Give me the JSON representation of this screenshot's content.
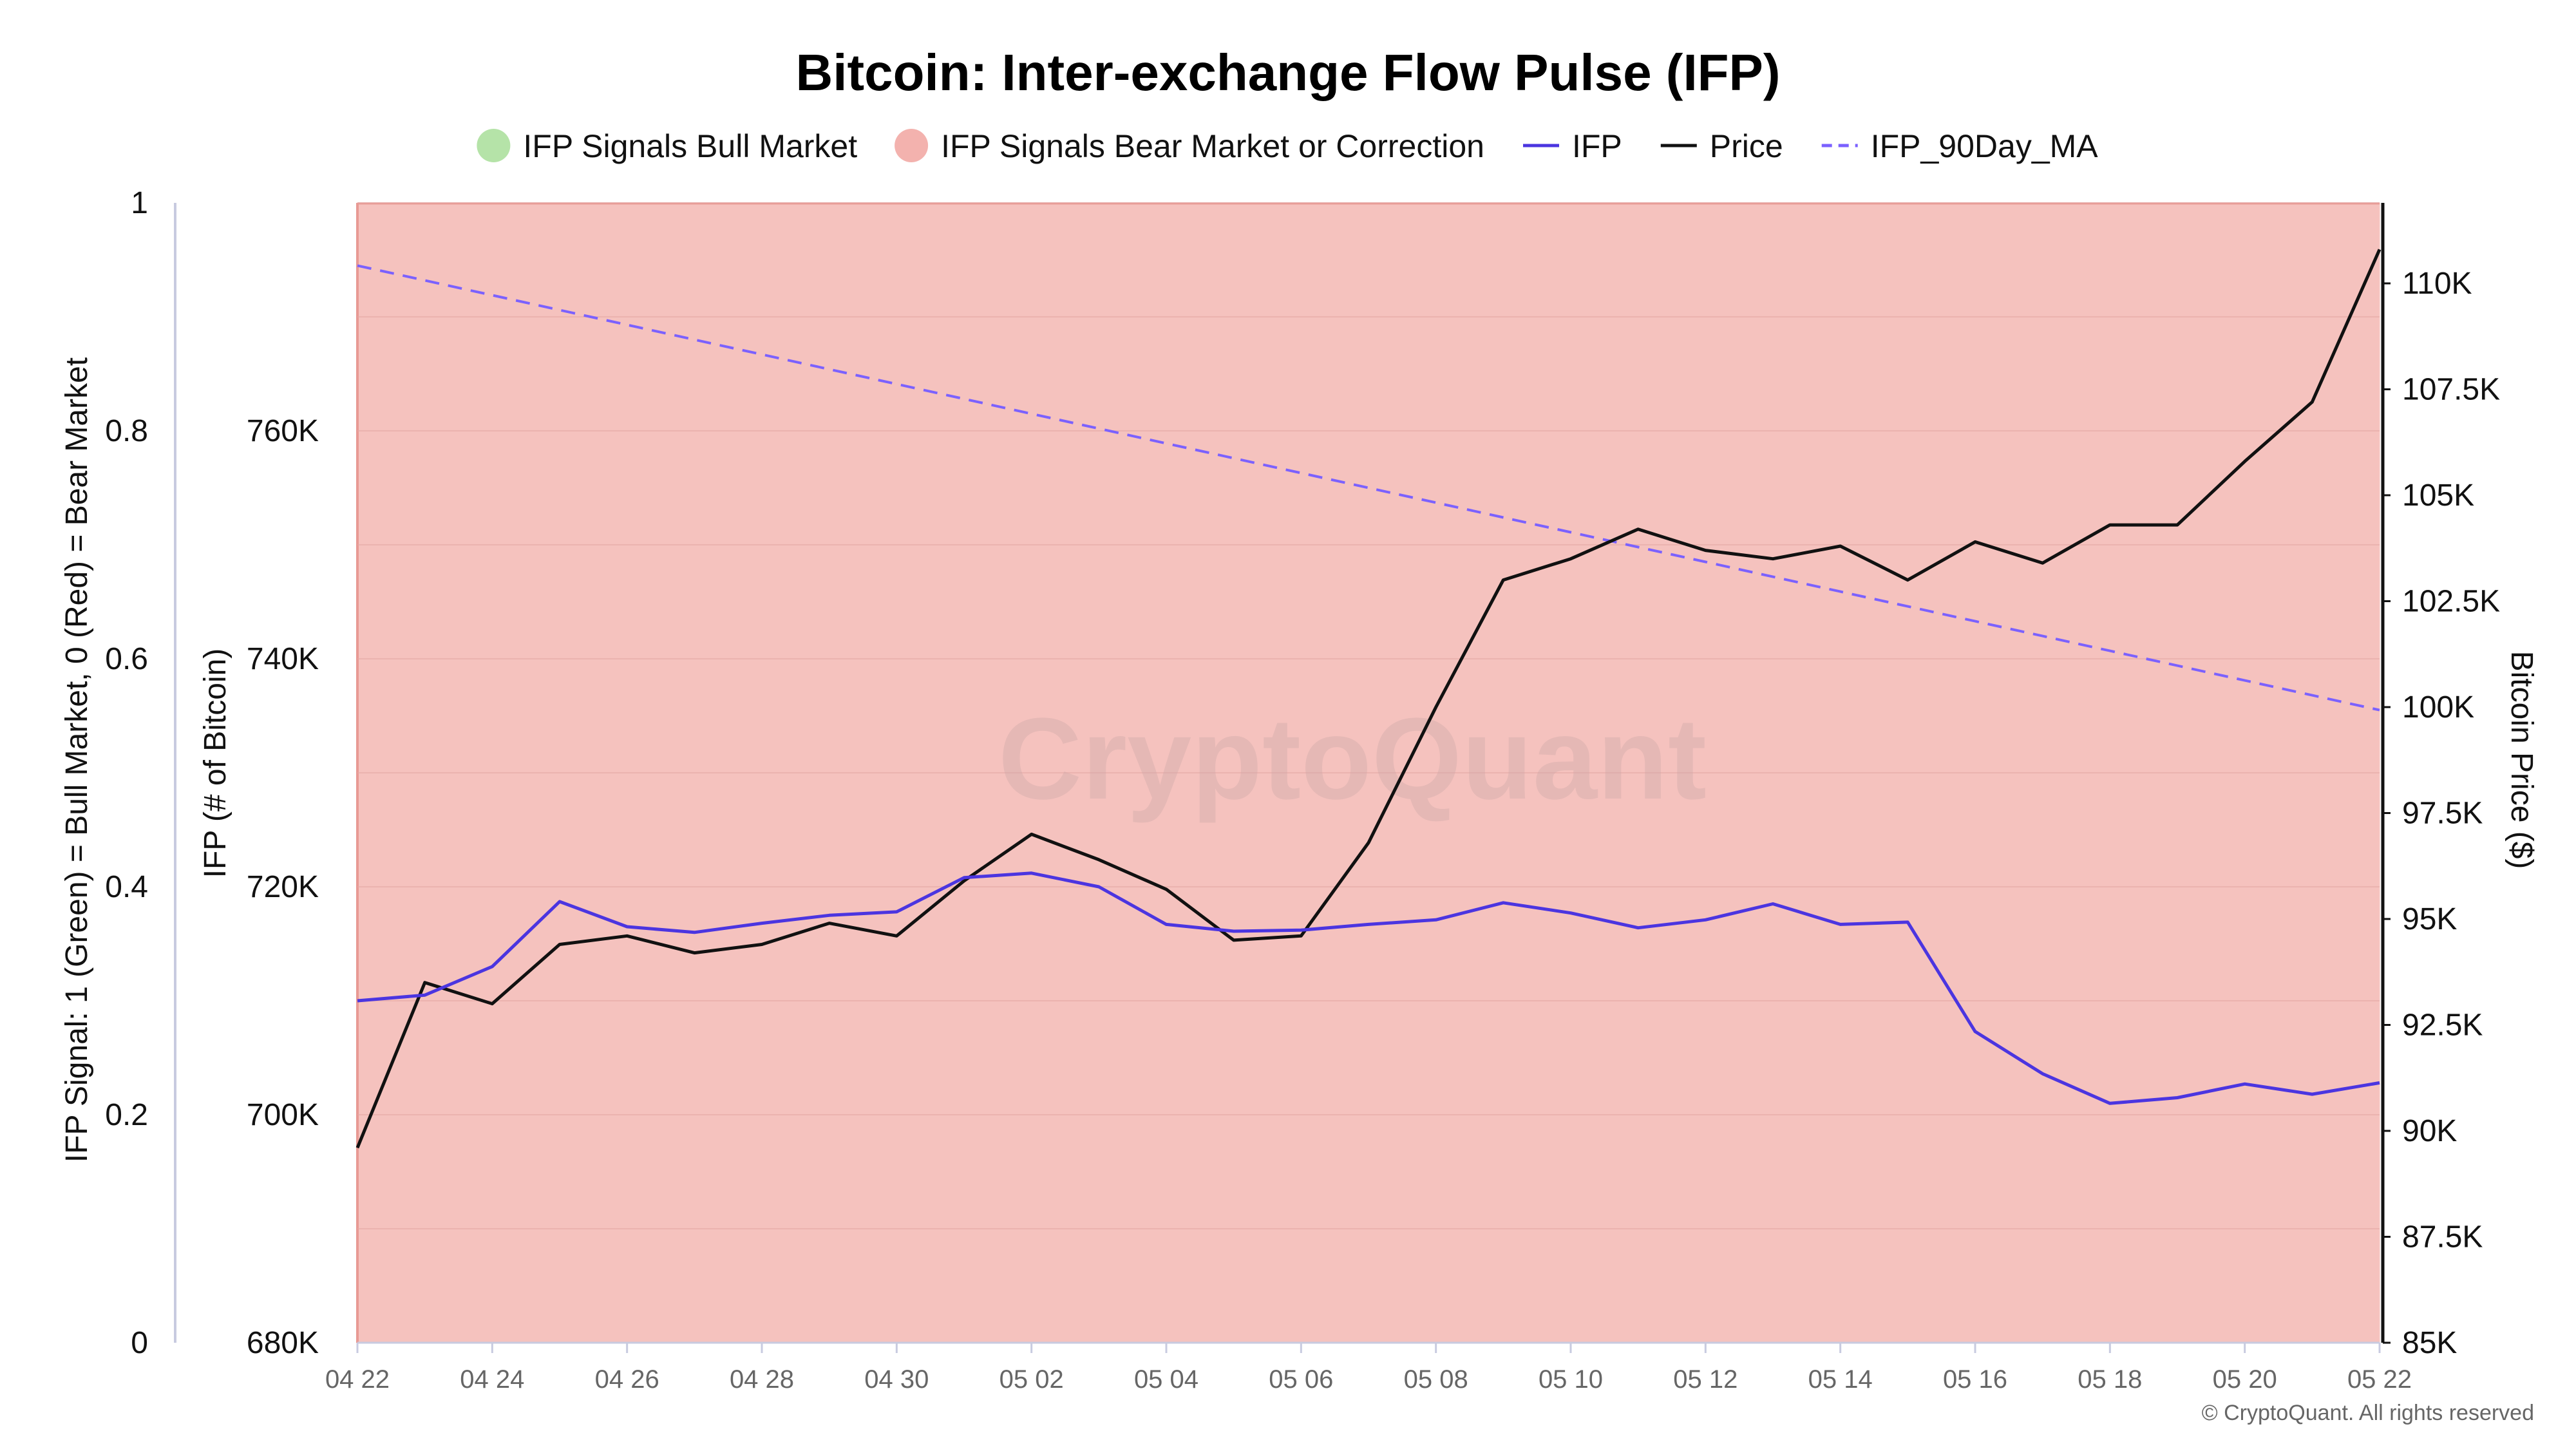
{
  "chart_data": {
    "type": "line",
    "title": "Bitcoin: Inter-exchange Flow Pulse (IFP)",
    "legend": [
      {
        "label": "IFP Signals Bull Market",
        "kind": "dot",
        "color": "#b5e3a8"
      },
      {
        "label": "IFP Signals Bear Market or Correction",
        "kind": "dot",
        "color": "#f3b2ae"
      },
      {
        "label": "IFP",
        "kind": "line",
        "color": "#4b35e0"
      },
      {
        "label": "Price",
        "kind": "line",
        "color": "#111111"
      },
      {
        "label": "IFP_90Day_MA",
        "kind": "dashed",
        "color": "#7b61ff"
      }
    ],
    "x": [
      "04 22",
      "04 23",
      "04 24",
      "04 25",
      "04 26",
      "04 27",
      "04 28",
      "04 29",
      "04 30",
      "05 01",
      "05 02",
      "05 03",
      "05 04",
      "05 05",
      "05 06",
      "05 07",
      "05 08",
      "05 09",
      "05 10",
      "05 11",
      "05 12",
      "05 13",
      "05 14",
      "05 15",
      "05 16",
      "05 17",
      "05 18",
      "05 19",
      "05 20",
      "05 21",
      "05 22"
    ],
    "x_tick_labels": [
      "04 22",
      "04 24",
      "04 26",
      "04 28",
      "04 30",
      "05 02",
      "05 04",
      "05 06",
      "05 08",
      "05 10",
      "05 12",
      "05 14",
      "05 16",
      "05 18",
      "05 20",
      "05 22"
    ],
    "signal": [
      0,
      0,
      0,
      0,
      0,
      0,
      0,
      0,
      0,
      0,
      0,
      0,
      0,
      0,
      0,
      0,
      0,
      0,
      0,
      0,
      0,
      0,
      0,
      0,
      0,
      0,
      0,
      0,
      0,
      0,
      0
    ],
    "series": [
      {
        "name": "IFP",
        "axis": "ifp",
        "color": "#4b35e0",
        "style": "solid",
        "values": [
          710000,
          710500,
          713000,
          718700,
          716500,
          716000,
          716800,
          717500,
          717800,
          720800,
          721200,
          720000,
          716700,
          716100,
          716200,
          716700,
          717100,
          718600,
          717700,
          716400,
          717100,
          718500,
          716700,
          716900,
          707300,
          703600,
          701000,
          701500,
          702700,
          701800,
          702800
        ]
      },
      {
        "name": "Price",
        "axis": "price",
        "color": "#111111",
        "style": "solid",
        "values": [
          89600,
          93500,
          93000,
          94400,
          94600,
          94200,
          94400,
          94900,
          94600,
          95900,
          97000,
          96400,
          95700,
          94500,
          94600,
          96800,
          100000,
          103000,
          103500,
          104200,
          103700,
          103500,
          103800,
          103000,
          103900,
          103400,
          104300,
          104300,
          105800,
          107200,
          110800
        ]
      },
      {
        "name": "IFP_90Day_MA",
        "axis": "ifp",
        "color": "#7b61ff",
        "style": "dashed",
        "values": [
          774500,
          773200,
          771900,
          770600,
          769300,
          768000,
          766700,
          765400,
          764100,
          762800,
          761500,
          760200,
          758900,
          757600,
          756300,
          755000,
          753700,
          752400,
          751100,
          749800,
          748500,
          747200,
          745900,
          744600,
          743300,
          742000,
          740700,
          739400,
          738100,
          736800,
          735500
        ]
      }
    ],
    "axes": {
      "signal": {
        "title": "IFP Signal: 1 (Green) = Bull Market, 0 (Red) = Bear Market",
        "range": [
          0,
          1
        ],
        "tick_values": [
          0,
          0.2,
          0.4,
          0.6,
          0.8,
          1
        ],
        "tick_labels": [
          "0",
          "0.2",
          "0.4",
          "0.6",
          "0.8",
          "1"
        ]
      },
      "ifp": {
        "title": "IFP (# of Bitcoin)",
        "range": [
          680000,
          780000
        ],
        "tick_values": [
          680000,
          700000,
          720000,
          740000,
          760000
        ],
        "tick_labels": [
          "680K",
          "700K",
          "720K",
          "740K",
          "760K"
        ]
      },
      "price": {
        "title": "Bitcoin Price ($)",
        "range": [
          85000,
          111900
        ],
        "tick_values": [
          85000,
          87500,
          90000,
          92500,
          95000,
          97500,
          100000,
          102500,
          105000,
          107500,
          110000
        ],
        "tick_labels": [
          "85K",
          "87.5K",
          "90K",
          "92.5K",
          "95K",
          "97.5K",
          "100K",
          "102.5K",
          "105K",
          "107.5K",
          "110K"
        ]
      }
    },
    "grid": true,
    "legend_position": "top-center",
    "colors": {
      "bull_fill": "#b5e3a8",
      "bear_fill": "#f5c2be",
      "bear_edge": "#e89a94"
    }
  },
  "watermark": "CryptoQuant",
  "copyright": "© CryptoQuant. All rights reserved"
}
